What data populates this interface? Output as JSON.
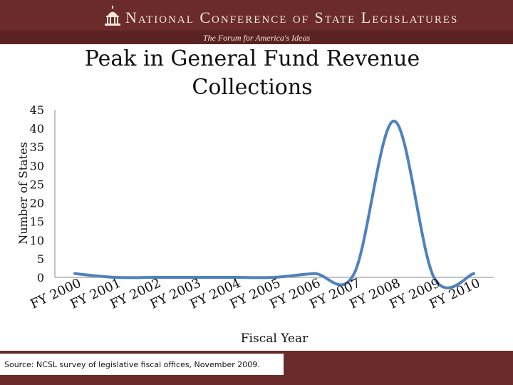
{
  "header": {
    "org_name": "National Conference of State Legislatures",
    "tagline": "The Forum for America's Ideas",
    "logo_icon": "capitol-dome-icon"
  },
  "source": "Source: NCSL survey of legislative fiscal offices, November 2009.",
  "colors": {
    "header": "#6b2b2a",
    "line": "#4f81bd"
  },
  "chart_data": {
    "type": "line",
    "title_lines": [
      "Peak in General Fund Revenue",
      "Collections"
    ],
    "xlabel": "Fiscal Year",
    "ylabel": "Number of States",
    "categories": [
      "FY 2000",
      "FY 2001",
      "FY 2002",
      "FY 2003",
      "FY 2004",
      "FY 2005",
      "FY 2006",
      "FY 2007",
      "FY 2008",
      "FY 2009",
      "FY 2010"
    ],
    "values": [
      1,
      0,
      0,
      0,
      0,
      0,
      1,
      1,
      42,
      0,
      1
    ],
    "yticks": [
      0,
      5,
      10,
      15,
      20,
      25,
      30,
      35,
      40,
      45
    ],
    "ylim": [
      0,
      45
    ],
    "grid": false,
    "legend": "none"
  }
}
